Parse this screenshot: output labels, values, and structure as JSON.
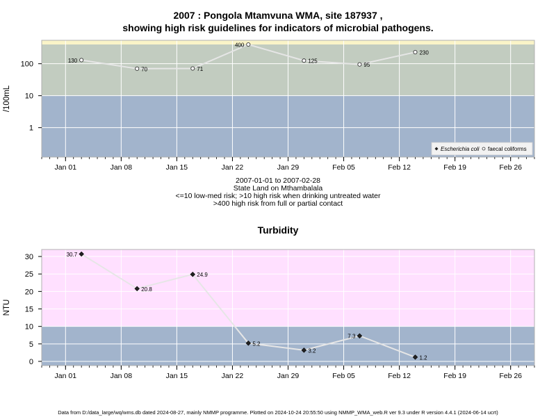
{
  "chart_data": [
    {
      "type": "line",
      "title": "2007 : Pongola Mtamvuna WMA, site 187937 ,",
      "subtitle": "showing high risk guidelines for indicators of microbial pathogens.",
      "ylabel": "/100mL",
      "y_scale": "log",
      "ylim": [
        0.12,
        540
      ],
      "y_ticks": [
        {
          "value": 1,
          "label": "1"
        },
        {
          "value": 10,
          "label": "10"
        },
        {
          "value": 100,
          "label": "100"
        }
      ],
      "x_ticks": [
        {
          "date": "2007-01-01",
          "label": "Jan 01"
        },
        {
          "date": "2007-01-08",
          "label": "Jan 08"
        },
        {
          "date": "2007-01-15",
          "label": "Jan 15"
        },
        {
          "date": "2007-01-22",
          "label": "Jan 22"
        },
        {
          "date": "2007-01-29",
          "label": "Jan 29"
        },
        {
          "date": "2007-02-05",
          "label": "Feb 05"
        },
        {
          "date": "2007-02-12",
          "label": "Feb 12"
        },
        {
          "date": "2007-02-19",
          "label": "Feb 19"
        },
        {
          "date": "2007-02-26",
          "label": "Feb 26"
        }
      ],
      "xlim": [
        "2006-12-29",
        "2007-03-01"
      ],
      "grid": true,
      "bands": [
        {
          "from": 0.12,
          "to": 10,
          "color": "#a2b4cc"
        },
        {
          "from": 10,
          "to": 400,
          "color": "#c2ccc0"
        },
        {
          "from": 400,
          "to": 540,
          "color": "#faf4c8"
        }
      ],
      "series": [
        {
          "name": "faecal coliforms",
          "color": "#ffffff",
          "x": [
            "2007-01-03",
            "2007-01-10",
            "2007-01-17",
            "2007-01-24",
            "2007-01-31",
            "2007-02-07",
            "2007-02-14"
          ],
          "y": [
            130,
            70,
            71,
            400,
            125,
            95,
            230
          ],
          "labels": [
            "130",
            "70",
            "71",
            "400",
            "125",
            "95",
            "230"
          ]
        }
      ],
      "legend": {
        "position": "bottom-right",
        "entries": [
          {
            "label": "Escherichia coli",
            "marker": "filled-diamond"
          },
          {
            "label": "faecal coliforms",
            "marker": "open-circle"
          }
        ]
      },
      "notes": [
        "2007-01-01 to 2007-02-28",
        "State Land on Mthambalala",
        "<=10 low-med risk; >10 high risk when drinking untreated water",
        ">400 high risk from full or partial contact"
      ]
    },
    {
      "type": "line",
      "title": "Turbidity",
      "ylabel": "NTU",
      "ylim": [
        -1.2,
        32
      ],
      "y_ticks": [
        {
          "value": 0,
          "label": "0"
        },
        {
          "value": 5,
          "label": "5"
        },
        {
          "value": 10,
          "label": "10"
        },
        {
          "value": 15,
          "label": "15"
        },
        {
          "value": 20,
          "label": "20"
        },
        {
          "value": 25,
          "label": "25"
        },
        {
          "value": 30,
          "label": "30"
        }
      ],
      "x_ticks": [
        {
          "date": "2007-01-01",
          "label": "Jan 01"
        },
        {
          "date": "2007-01-08",
          "label": "Jan 08"
        },
        {
          "date": "2007-01-15",
          "label": "Jan 15"
        },
        {
          "date": "2007-01-22",
          "label": "Jan 22"
        },
        {
          "date": "2007-01-29",
          "label": "Jan 29"
        },
        {
          "date": "2007-02-05",
          "label": "Feb 05"
        },
        {
          "date": "2007-02-12",
          "label": "Feb 12"
        },
        {
          "date": "2007-02-19",
          "label": "Feb 19"
        },
        {
          "date": "2007-02-26",
          "label": "Feb 26"
        }
      ],
      "xlim": [
        "2006-12-29",
        "2007-03-01"
      ],
      "grid": true,
      "bands": [
        {
          "from": -1.2,
          "to": 10,
          "color": "#a2b4cc"
        },
        {
          "from": 10,
          "to": 32,
          "color": "#ffe0ff"
        }
      ],
      "series": [
        {
          "color": "#222222",
          "x": [
            "2007-01-03",
            "2007-01-10",
            "2007-01-17",
            "2007-01-24",
            "2007-01-31",
            "2007-02-07",
            "2007-02-14"
          ],
          "y": [
            30.7,
            20.8,
            24.9,
            5.2,
            3.2,
            7.3,
            1.2
          ],
          "labels": [
            "30.7",
            "20.8",
            "24.9",
            "5.2",
            "3.2",
            "7.3",
            "1.2"
          ]
        }
      ]
    }
  ],
  "footer": "Data from D:/data_large/wq/wms.db dated 2024-08-27, mainly NMMP programme. Plotted on 2024-10-24 20:55:50 using NMMP_WMA_web.R ver 9.3 under R version 4.4.1 (2024-06-14 ucrt)"
}
